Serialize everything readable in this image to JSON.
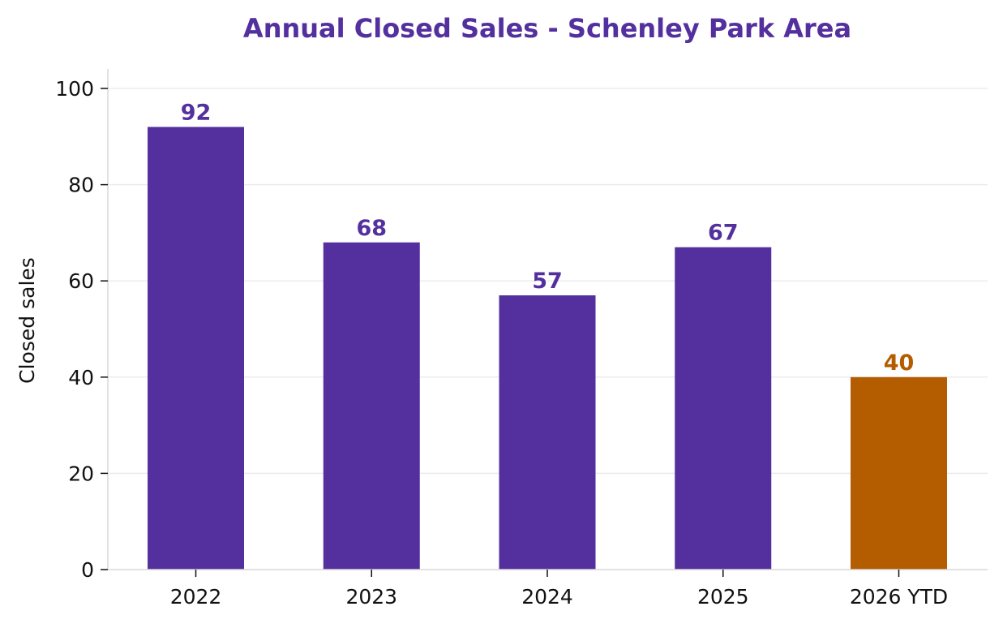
{
  "chart_data": {
    "type": "bar",
    "title": "Annual Closed Sales - Schenley Park Area",
    "xlabel": "",
    "ylabel": "Closed sales",
    "categories": [
      "2022",
      "2023",
      "2024",
      "2025",
      "2026 YTD"
    ],
    "values": [
      92,
      68,
      57,
      67,
      40
    ],
    "data_labels": [
      "92",
      "68",
      "57",
      "67",
      "40"
    ],
    "ylim": [
      0,
      104
    ],
    "yticks": [
      0,
      20,
      40,
      60,
      80,
      100
    ],
    "ytick_labels": [
      "0",
      "20",
      "40",
      "60",
      "80",
      "100"
    ],
    "grid": "horizontal",
    "legend": "none",
    "highlight_index": 4
  },
  "colors": {
    "primary_bar": "#54309e",
    "highlight_bar": "#b35c00",
    "title": "#54309e",
    "grid": "#ebebeb",
    "axis": "#d9d9d9",
    "text": "#111111"
  }
}
